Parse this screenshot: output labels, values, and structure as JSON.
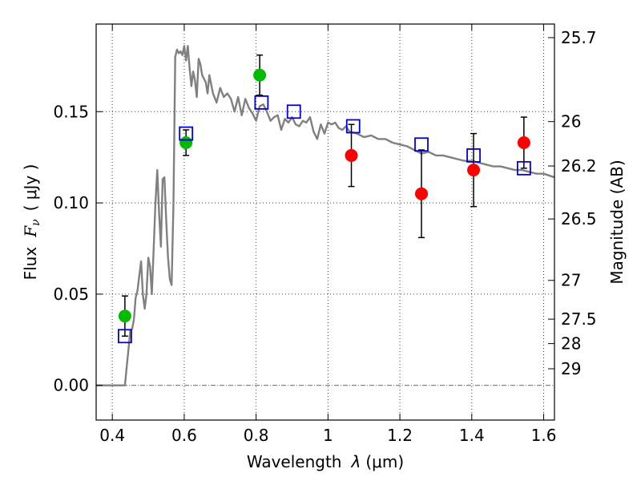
{
  "chart_data": {
    "type": "scatter",
    "xlabel_text": "Wavelength",
    "xlabel_symbol": "λ",
    "xlabel_unit": "(μm)",
    "ylabel_text": "Flux",
    "ylabel_symbol": "F",
    "ylabel_subscript": "ν",
    "ylabel_unit": "( μJy )",
    "y2label": "Magnitude (AB)",
    "xlim": [
      0.355,
      1.63
    ],
    "ylim": [
      -0.019,
      0.198
    ],
    "grid": true,
    "x_ticks": [
      0.4,
      0.6,
      0.8,
      1.0,
      1.2,
      1.4,
      1.6
    ],
    "x_tick_labels": [
      "0.4",
      "0.6",
      "0.8",
      "1",
      "1.2",
      "1.4",
      "1.6"
    ],
    "y_ticks": [
      0.0,
      0.05,
      0.1,
      0.15
    ],
    "y_tick_labels": [
      "0.00",
      "0.05",
      "0.10",
      "0.15"
    ],
    "mag_ticks": [
      25.7,
      26,
      26.2,
      26.5,
      27,
      27.5,
      28,
      29
    ],
    "mag_tick_labels": [
      "25.7",
      "26",
      "26.2",
      "26.5",
      "27",
      "27.5",
      "28",
      "29"
    ],
    "colors": {
      "model": "#808080",
      "green": "#00bb00",
      "red": "#ff0000",
      "square": "#0000dd",
      "errorbar": "#000000"
    },
    "model_sed": {
      "name": "Model SED",
      "x": [
        0.355,
        0.42,
        0.43,
        0.435,
        0.44,
        0.445,
        0.45,
        0.455,
        0.46,
        0.465,
        0.47,
        0.475,
        0.48,
        0.485,
        0.49,
        0.495,
        0.5,
        0.505,
        0.51,
        0.515,
        0.52,
        0.525,
        0.53,
        0.535,
        0.54,
        0.545,
        0.55,
        0.555,
        0.56,
        0.565,
        0.57,
        0.575,
        0.58,
        0.585,
        0.59,
        0.595,
        0.6,
        0.605,
        0.61,
        0.615,
        0.62,
        0.625,
        0.63,
        0.635,
        0.64,
        0.645,
        0.65,
        0.655,
        0.66,
        0.665,
        0.67,
        0.68,
        0.69,
        0.7,
        0.71,
        0.72,
        0.73,
        0.74,
        0.75,
        0.76,
        0.77,
        0.78,
        0.79,
        0.8,
        0.81,
        0.82,
        0.83,
        0.84,
        0.85,
        0.86,
        0.87,
        0.88,
        0.89,
        0.9,
        0.91,
        0.92,
        0.93,
        0.94,
        0.95,
        0.96,
        0.97,
        0.98,
        0.99,
        1.0,
        1.01,
        1.02,
        1.03,
        1.04,
        1.05,
        1.06,
        1.08,
        1.1,
        1.12,
        1.14,
        1.16,
        1.18,
        1.2,
        1.22,
        1.24,
        1.26,
        1.28,
        1.3,
        1.32,
        1.34,
        1.36,
        1.38,
        1.4,
        1.42,
        1.44,
        1.46,
        1.48,
        1.5,
        1.52,
        1.54,
        1.56,
        1.58,
        1.6,
        1.63
      ],
      "y": [
        0.0,
        0.0,
        0.0,
        0.0,
        0.01,
        0.02,
        0.03,
        0.031,
        0.036,
        0.048,
        0.052,
        0.06,
        0.068,
        0.05,
        0.042,
        0.05,
        0.07,
        0.065,
        0.05,
        0.075,
        0.1,
        0.118,
        0.095,
        0.076,
        0.113,
        0.114,
        0.09,
        0.07,
        0.058,
        0.055,
        0.1,
        0.18,
        0.184,
        0.182,
        0.183,
        0.181,
        0.186,
        0.178,
        0.186,
        0.174,
        0.164,
        0.172,
        0.167,
        0.158,
        0.179,
        0.176,
        0.17,
        0.168,
        0.166,
        0.16,
        0.17,
        0.16,
        0.155,
        0.163,
        0.158,
        0.16,
        0.157,
        0.15,
        0.158,
        0.148,
        0.157,
        0.152,
        0.149,
        0.145,
        0.153,
        0.154,
        0.15,
        0.145,
        0.147,
        0.148,
        0.14,
        0.146,
        0.144,
        0.147,
        0.143,
        0.142,
        0.145,
        0.144,
        0.147,
        0.139,
        0.135,
        0.143,
        0.138,
        0.144,
        0.143,
        0.144,
        0.141,
        0.14,
        0.142,
        0.139,
        0.138,
        0.136,
        0.137,
        0.135,
        0.135,
        0.133,
        0.132,
        0.131,
        0.129,
        0.127,
        0.128,
        0.126,
        0.126,
        0.125,
        0.124,
        0.123,
        0.123,
        0.122,
        0.121,
        0.12,
        0.12,
        0.119,
        0.118,
        0.118,
        0.117,
        0.116,
        0.116,
        0.114
      ]
    },
    "series": [
      {
        "name": "green points",
        "color_key": "green",
        "x": [
          0.435,
          0.605,
          0.81
        ],
        "y": [
          0.038,
          0.133,
          0.17
        ],
        "err": [
          0.011,
          0.007,
          0.011
        ]
      },
      {
        "name": "red points",
        "color_key": "red",
        "x": [
          1.065,
          1.26,
          1.405,
          1.545
        ],
        "y": [
          0.126,
          0.105,
          0.118,
          0.133
        ],
        "err": [
          0.017,
          0.024,
          0.02,
          0.014
        ]
      },
      {
        "name": "model squares",
        "color_key": "square",
        "x": [
          0.435,
          0.605,
          0.815,
          0.905,
          1.07,
          1.26,
          1.405,
          1.545
        ],
        "y": [
          0.027,
          0.138,
          0.155,
          0.15,
          0.142,
          0.132,
          0.126,
          0.119
        ]
      }
    ]
  }
}
